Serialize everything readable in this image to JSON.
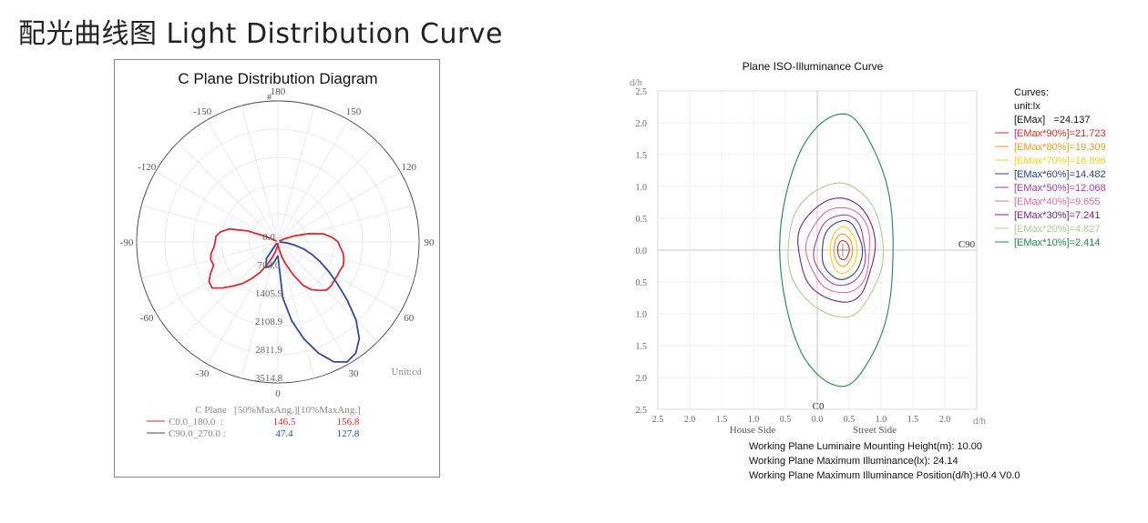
{
  "page": {
    "title": "配光曲线图 Light Distribution Curve"
  },
  "polar": {
    "title": "C Plane Distribution Diagram",
    "angle_labels": [
      {
        "angle": 180,
        "text": "180"
      },
      {
        "angle": 150,
        "text": "150"
      },
      {
        "angle": -150,
        "text": "-150"
      },
      {
        "angle": 120,
        "text": "120"
      },
      {
        "angle": -120,
        "text": "-120"
      },
      {
        "angle": 90,
        "text": "90"
      },
      {
        "angle": -90,
        "text": "-90"
      },
      {
        "angle": 60,
        "text": "60"
      },
      {
        "angle": -60,
        "text": "-60"
      },
      {
        "angle": 30,
        "text": "30"
      },
      {
        "angle": -30,
        "text": "-30"
      },
      {
        "angle": 0,
        "text": "0"
      }
    ],
    "radial_labels": [
      "0.0",
      "703.0",
      "1405.9",
      "2108.9",
      "2811.9",
      "3514.8"
    ],
    "unit_label": "Unit:cd",
    "legend": {
      "header": "C Plane   [50%MaxAng.][10%MaxAng.]",
      "rows": [
        {
          "label": "C0.0_180.0  :",
          "v50": "146.5",
          "v10": "156.8",
          "color": "#e0282d"
        },
        {
          "label": "C90.0_270.0 :",
          "v50": "47.4",
          "v10": "127.8",
          "color": "#2f4aa0"
        }
      ]
    }
  },
  "iso": {
    "title": "Plane ISO-Illuminance Curve",
    "y_unit": "d/h",
    "x_unit": "d/h",
    "y_ticks": [
      "2.5",
      "2.0",
      "1.5",
      "1.0",
      "0.5",
      "0.0",
      "0.5",
      "1.0",
      "1.5",
      "2.0",
      "2.5"
    ],
    "x_ticks": [
      "2.5",
      "2.0",
      "1.5",
      "1.0",
      "0.5",
      "0.0",
      "0.5",
      "1.0",
      "1.5",
      "2.0"
    ],
    "house_side": "House Side",
    "street_side": "Street Side",
    "c0_label": "C0",
    "c90_label": "C90",
    "legend_header": [
      "Curves:",
      "unit:lx",
      "[EMax]   =24.137"
    ],
    "curves": [
      {
        "label": "[EMax*90%]=21.723",
        "color": "#e8242a"
      },
      {
        "label": "[EMax*80%]=19.309",
        "color": "#f39a1e"
      },
      {
        "label": "[EMax*70%]=16.896",
        "color": "#f7cf1a"
      },
      {
        "label": "[EMax*60%]=14.482",
        "color": "#2b3f98"
      },
      {
        "label": "[EMax*50%]=12.068",
        "color": "#b23aa6"
      },
      {
        "label": "[EMax*40%]=9.655",
        "color": "#e9689e"
      },
      {
        "label": "[EMax*30%]=7.241",
        "color": "#7b1f86"
      },
      {
        "label": "[EMax*20%]=4.827",
        "color": "#a6d28f"
      },
      {
        "label": "[EMax*10%]=2.414",
        "color": "#1e8b46"
      }
    ],
    "info": [
      "Working Plane Luminaire Mounting Height(m): 10.00",
      "Working Plane Maximum Illuminance(lx): 24.14",
      "Working Plane Maximum Illuminance Position(d/h):H0.4 V0.0"
    ]
  },
  "chart_data": [
    {
      "type": "polar",
      "title": "C Plane Distribution Diagram",
      "unit": "cd",
      "rmax": 3514.8,
      "series": [
        {
          "name": "C0.0_180.0",
          "color": "#e0282d",
          "angles": [
            -120,
            -115,
            -110,
            -105,
            -100,
            -95,
            -90,
            -85,
            -80,
            -75,
            -70,
            -65,
            -60,
            -55,
            -50,
            -45,
            -40,
            -35,
            -30,
            -25,
            -20,
            -15,
            -10,
            -5,
            0,
            5,
            10,
            15,
            20,
            25,
            30,
            35,
            40,
            45,
            50,
            55,
            60,
            65,
            70,
            75,
            80,
            85,
            90,
            95,
            100,
            105,
            110,
            115,
            120
          ],
          "values": [
            40,
            300,
            800,
            1250,
            1450,
            1550,
            1560,
            1600,
            1690,
            1730,
            1700,
            1850,
            1980,
            2000,
            1780,
            1550,
            1350,
            1100,
            870,
            620,
            400,
            270,
            160,
            90,
            40,
            100,
            200,
            400,
            600,
            900,
            1250,
            1450,
            1580,
            1700,
            1720,
            1700,
            1700,
            1700,
            1730,
            1700,
            1650,
            1560,
            1500,
            1350,
            1150,
            800,
            450,
            180,
            40
          ]
        },
        {
          "name": "C90.0_270.0",
          "color": "#2f4aa0",
          "angles": [
            -45,
            -35,
            -25,
            -20,
            -15,
            -10,
            -5,
            0,
            5,
            10,
            15,
            20,
            25,
            30,
            35,
            40,
            45,
            50,
            55,
            60,
            65,
            70,
            75,
            80,
            85,
            90
          ],
          "values": [
            40,
            500,
            700,
            650,
            600,
            500,
            400,
            350,
            1400,
            2000,
            2500,
            2950,
            3300,
            3450,
            3380,
            3150,
            2750,
            2250,
            1800,
            1450,
            1150,
            900,
            650,
            400,
            200,
            40
          ]
        }
      ],
      "legend": [
        {
          "name": "C0.0_180.0",
          "max50": 146.5,
          "max10": 156.8
        },
        {
          "name": "C90.0_270.0",
          "max50": 47.4,
          "max10": 127.8
        }
      ]
    },
    {
      "type": "contour",
      "title": "Plane ISO-Illuminance Curve",
      "xlabel": "d/h",
      "ylabel": "d/h",
      "xlim": [
        -2.5,
        2.5
      ],
      "ylim": [
        -2.5,
        2.5
      ],
      "center": [
        0.4,
        0.0
      ],
      "series": [
        {
          "name": "[EMax*90%]=21.723",
          "color": "#e8242a",
          "level": 21.723,
          "hx_left": 0.08,
          "hx_right": 0.1,
          "hy": 0.15
        },
        {
          "name": "[EMax*80%]=19.309",
          "color": "#f39a1e",
          "level": 19.309,
          "hx_left": 0.14,
          "hx_right": 0.15,
          "hy": 0.25
        },
        {
          "name": "[EMax*70%]=16.896",
          "color": "#f7cf1a",
          "level": 16.896,
          "hx_left": 0.2,
          "hx_right": 0.22,
          "hy": 0.36
        },
        {
          "name": "[EMax*60%]=14.482",
          "color": "#2b3f98",
          "level": 14.482,
          "hx_left": 0.33,
          "hx_right": 0.3,
          "hy": 0.46
        },
        {
          "name": "[EMax*50%]=12.068",
          "color": "#b23aa6",
          "level": 12.068,
          "hx_left": 0.44,
          "hx_right": 0.36,
          "hy": 0.56
        },
        {
          "name": "[EMax*40%]=9.655",
          "color": "#e9689e",
          "level": 9.655,
          "hx_left": 0.55,
          "hx_right": 0.44,
          "hy": 0.68
        },
        {
          "name": "[EMax*30%]=7.241",
          "color": "#7b1f86",
          "level": 7.241,
          "hx_left": 0.7,
          "hx_right": 0.5,
          "hy": 0.82
        },
        {
          "name": "[EMax*20%]=4.827",
          "color": "#a6d28f",
          "level": 4.827,
          "hx_left": 0.88,
          "hx_right": 0.62,
          "hy": 1.04
        },
        {
          "name": "[EMax*10%]=2.414",
          "color": "#1e8b46",
          "level": 2.414,
          "hx_left": 1.0,
          "hx_right": 0.78,
          "hy": 2.1
        }
      ]
    }
  ]
}
